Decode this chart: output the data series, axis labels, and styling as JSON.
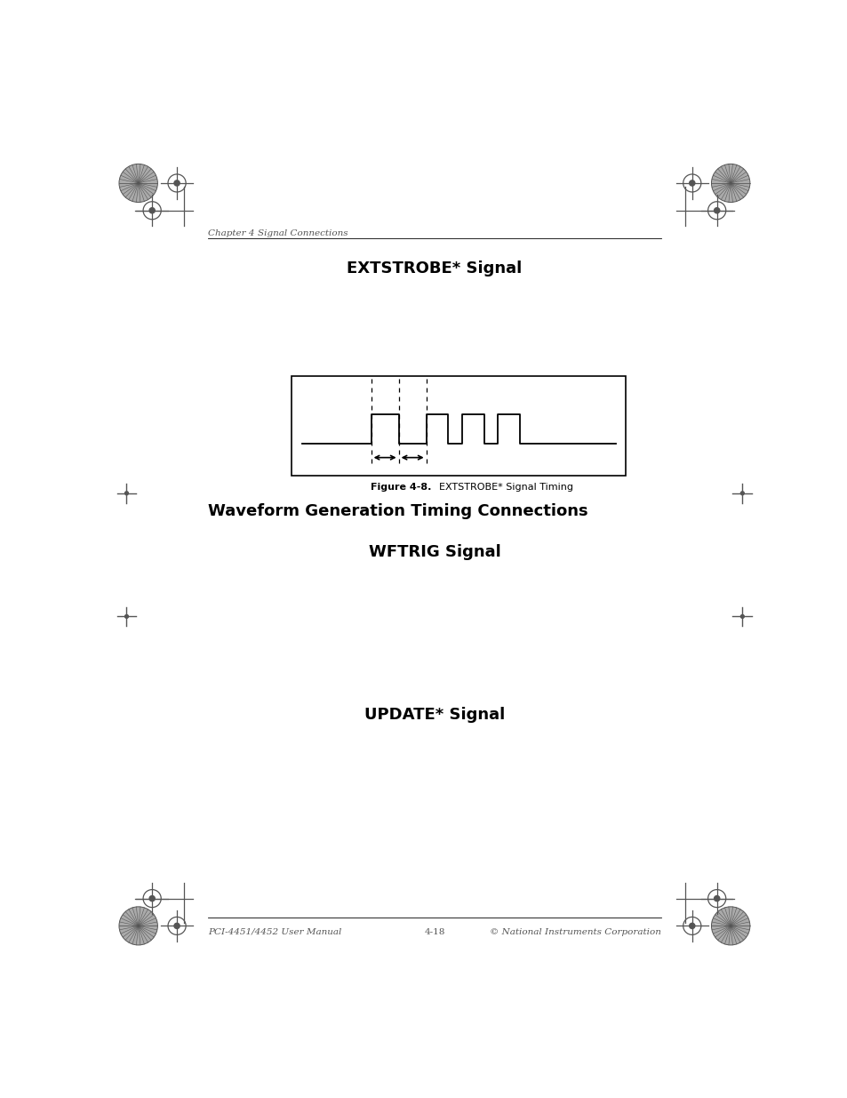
{
  "page_bg": "#ffffff",
  "title": "EXTSTROBE* Signal",
  "section_heading": "Waveform Generation Timing Connections",
  "subsection_heading": "WFTRIG Signal",
  "subsection2_heading": "UPDATE* Signal",
  "chapter_label": "Chapter 4",
  "chapter_label2": "Signal Connections",
  "footer_left": "PCI-4451/4452 User Manual",
  "footer_center": "4-18",
  "footer_right": "© National Instruments Corporation",
  "fig_caption_bold": "Figure 4-8.",
  "fig_caption_normal": "  EXTSTROBE* Signal Timing",
  "title_fontsize": 13,
  "section_fontsize": 13,
  "caption_fontsize": 8,
  "header_fontsize": 7.5,
  "footer_fontsize": 7.5,
  "line_color": "#000000",
  "mark_color": "#555555",
  "text_color": "#000000",
  "header_text_color": "#555555"
}
